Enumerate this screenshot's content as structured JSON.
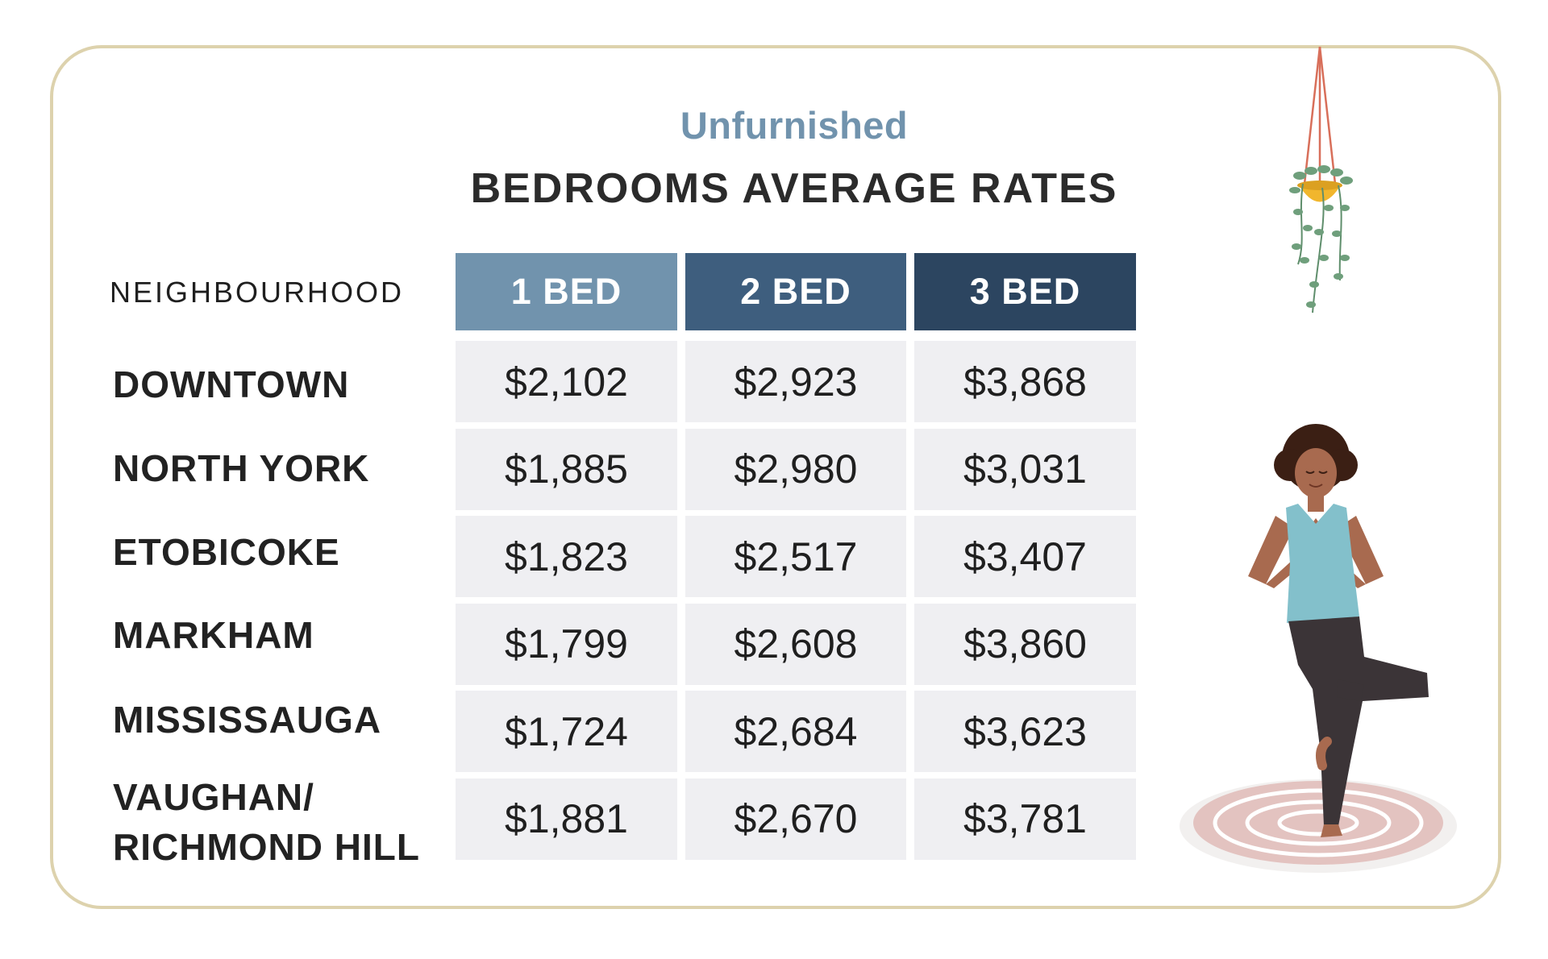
{
  "header": {
    "subtitle": "Unfurnished",
    "title": "BEDROOMS AVERAGE RATES"
  },
  "colors": {
    "head_1": "#7193ad",
    "head_2": "#3e5e7e",
    "head_3": "#2c4560",
    "cell_bg": "#efeff2",
    "border": "#ddd2ad"
  },
  "chart_data": {
    "type": "table",
    "title": "BEDROOMS AVERAGE RATES",
    "subtitle": "Unfurnished",
    "row_header": "NEIGHBOURHOOD",
    "columns": [
      "1 BED",
      "2 BED",
      "3 BED"
    ],
    "rows": [
      {
        "name": "DOWNTOWN",
        "values": [
          "$2,102",
          "$2,923",
          "$3,868"
        ]
      },
      {
        "name": "NORTH YORK",
        "values": [
          "$1,885",
          "$2,980",
          "$3,031"
        ]
      },
      {
        "name": "ETOBICOKE",
        "values": [
          "$1,823",
          "$2,517",
          "$3,407"
        ]
      },
      {
        "name": "MARKHAM",
        "values": [
          "$1,799",
          "$2,608",
          "$3,860"
        ]
      },
      {
        "name": "MISSISSAUGA",
        "values": [
          "$1,724",
          "$2,684",
          "$3,623"
        ]
      },
      {
        "name": "VAUGHAN/\nRICHMOND HILL",
        "values": [
          "$1,881",
          "$2,670",
          "$3,781"
        ]
      }
    ]
  },
  "illustrations": {
    "plant_icon": "hanging-plant-icon",
    "person_icon": "yoga-person-icon"
  }
}
